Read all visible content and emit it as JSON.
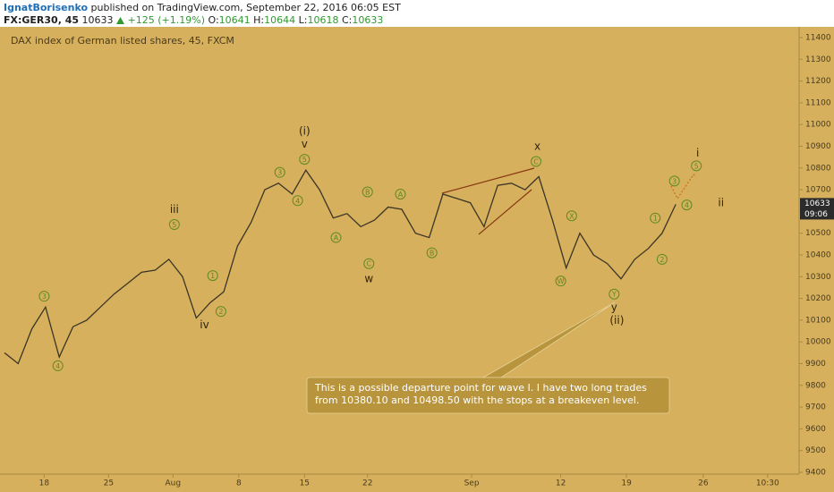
{
  "header": {
    "author": "IgnatBorisenko",
    "published": "published on TradingView.com, September 22, 2016 06:05 EST",
    "symbol": "FX:GER30, 45",
    "price": "10633",
    "change": "+125 (+1.19%)",
    "ohlc": [
      {
        "label": "O:",
        "value": "10641"
      },
      {
        "label": "H:",
        "value": "10644"
      },
      {
        "label": "L:",
        "value": "10618"
      },
      {
        "label": "C:",
        "value": "10633"
      }
    ]
  },
  "chart_data": {
    "type": "line",
    "title": "DAX index of German listed shares, 45, FXCM",
    "color": "#3b3526",
    "values": [
      9950,
      9900,
      10060,
      10160,
      9930,
      10070,
      10100,
      10160,
      10220,
      10270,
      10320,
      10330,
      10380,
      10300,
      10110,
      10180,
      10230,
      10440,
      10550,
      10700,
      10730,
      10680,
      10790,
      10700,
      10570,
      10590,
      10530,
      10560,
      10620,
      10610,
      10500,
      10480,
      10680,
      10660,
      10640,
      10530,
      10720,
      10730,
      10700,
      10760,
      10560,
      10340,
      10500,
      10400,
      10360,
      10290,
      10380,
      10430,
      10500,
      10633
    ],
    "xlim": [
      0,
      58
    ],
    "ylim": [
      9400,
      11400
    ],
    "yticks": [
      9400,
      9500,
      9600,
      9700,
      9800,
      9900,
      10000,
      10100,
      10200,
      10300,
      10400,
      10500,
      10600,
      10700,
      10800,
      10900,
      11000,
      11100,
      11200,
      11300,
      11400
    ],
    "xticks": [
      {
        "value": 2.9,
        "label": "18"
      },
      {
        "value": 7.6,
        "label": "25"
      },
      {
        "value": 12.3,
        "label": "Aug"
      },
      {
        "value": 17.1,
        "label": "8"
      },
      {
        "value": 21.9,
        "label": "15"
      },
      {
        "value": 26.5,
        "label": "22"
      },
      {
        "value": 34.1,
        "label": "Sep"
      },
      {
        "value": 40.6,
        "label": "12"
      },
      {
        "value": 45.4,
        "label": "19"
      },
      {
        "value": 51,
        "label": "26"
      },
      {
        "value": 55.7,
        "label": "10:30"
      }
    ],
    "price_tag": "10633",
    "time_tag": "09:06",
    "circle_color": "#5f8a22",
    "label_color": "#2e2410",
    "annotations": [
      {
        "text": "3",
        "x": 2.9,
        "y": 10210,
        "circled": true
      },
      {
        "text": "4",
        "x": 3.9,
        "y": 9890,
        "circled": true
      },
      {
        "text": "iii",
        "x": 12.4,
        "y": 10610,
        "circled": false
      },
      {
        "text": "5",
        "x": 12.4,
        "y": 10540,
        "circled": true
      },
      {
        "text": "1",
        "x": 15.2,
        "y": 10305,
        "circled": true
      },
      {
        "text": "2",
        "x": 15.8,
        "y": 10140,
        "circled": true
      },
      {
        "text": "iv",
        "x": 14.6,
        "y": 10080,
        "circled": false
      },
      {
        "text": "3",
        "x": 20.1,
        "y": 10780,
        "circled": true
      },
      {
        "text": "4",
        "x": 21.4,
        "y": 10650,
        "circled": true
      },
      {
        "text": "5",
        "x": 21.9,
        "y": 10840,
        "circled": true
      },
      {
        "text": "(i)",
        "x": 21.9,
        "y": 10970,
        "circled": false
      },
      {
        "text": "v",
        "x": 21.9,
        "y": 10910,
        "circled": false
      },
      {
        "text": "A",
        "x": 24.2,
        "y": 10480,
        "circled": true
      },
      {
        "text": "B",
        "x": 26.5,
        "y": 10690,
        "circled": true
      },
      {
        "text": "C",
        "x": 26.6,
        "y": 10360,
        "circled": true
      },
      {
        "text": "w",
        "x": 26.6,
        "y": 10290,
        "circled": false
      },
      {
        "text": "A",
        "x": 28.9,
        "y": 10680,
        "circled": true
      },
      {
        "text": "B",
        "x": 31.2,
        "y": 10410,
        "circled": true
      },
      {
        "text": "x",
        "x": 38.9,
        "y": 10900,
        "circled": false
      },
      {
        "text": "C",
        "x": 38.8,
        "y": 10830,
        "circled": true
      },
      {
        "text": "X",
        "x": 41.4,
        "y": 10580,
        "circled": true
      },
      {
        "text": "W",
        "x": 40.6,
        "y": 10280,
        "circled": true
      },
      {
        "text": "Y",
        "x": 44.5,
        "y": 10220,
        "circled": true
      },
      {
        "text": "y",
        "x": 44.5,
        "y": 10160,
        "circled": false
      },
      {
        "text": "(ii)",
        "x": 44.7,
        "y": 10100,
        "circled": false
      },
      {
        "text": "1",
        "x": 47.5,
        "y": 10570,
        "circled": true
      },
      {
        "text": "2",
        "x": 48,
        "y": 10380,
        "circled": true
      },
      {
        "text": "3",
        "x": 48.9,
        "y": 10740,
        "circled": true
      },
      {
        "text": "4",
        "x": 49.8,
        "y": 10630,
        "circled": true
      },
      {
        "text": "5",
        "x": 50.5,
        "y": 10810,
        "circled": true
      },
      {
        "text": "i",
        "x": 50.6,
        "y": 10870,
        "circled": false
      },
      {
        "text": "ii",
        "x": 52.3,
        "y": 10640,
        "circled": false
      }
    ],
    "callout": [
      "This is a possible departure point for wave I. I have two long trades",
      "from 10380.10 and 10498.50 with the stops at a breakeven level."
    ]
  }
}
